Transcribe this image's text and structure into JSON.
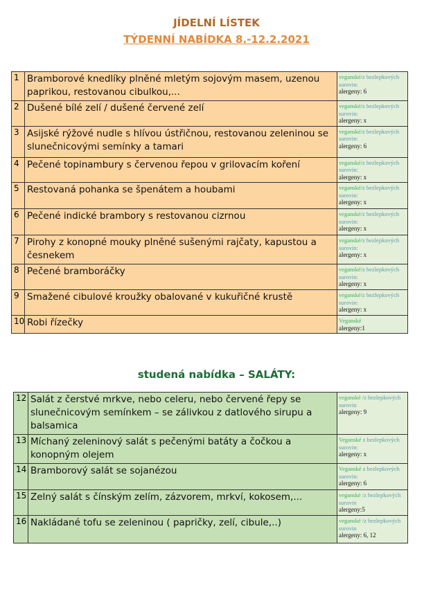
{
  "title": "JÍDELNÍ LÍSTEK",
  "subtitle": "TÝDENNÍ NABÍDKA 8.-12.2.2021",
  "weekly": [
    {
      "num": "1",
      "dish": "Bramborové knedlíky plněné mletým sojovým masem, uzenou paprikou, restovanou cibulkou,...",
      "vegan": "veganské/",
      "gf": "z bezlepkových surovin:",
      "allergens": "alergeny: 6"
    },
    {
      "num": "2",
      "dish": "Dušené bílé zelí / dušené červené zelí",
      "vegan": "veganské/",
      "gf": "z bezlepkových surovin:",
      "allergens": "alergeny: x"
    },
    {
      "num": "3",
      "dish": "Asijské rýžové nudle s hlívou ústřičnou, restovanou zeleninou se slunečnicovými semínky a tamari",
      "vegan": "veganské/",
      "gf": "z bezlepkových surovin:",
      "allergens": "alergeny: 6"
    },
    {
      "num": "4",
      "dish": "Pečené topinambury s červenou řepou v grilovacím koření",
      "vegan": "veganské/",
      "gf": "z bezlepkových surovin:",
      "allergens": "alergeny: x"
    },
    {
      "num": "5",
      "dish": "Restovaná pohanka se špenátem a houbami",
      "vegan": "veganské/",
      "gf": "z bezlepkových surovin:",
      "allergens": "alergeny: x"
    },
    {
      "num": "6",
      "dish": "Pečené indické brambory s restovanou cizrnou",
      "vegan": "veganské/",
      "gf": "z bezlepkových surovin:",
      "allergens": "alergeny: x"
    },
    {
      "num": "7",
      "dish": "Pirohy z konopné mouky plněné sušenými rajčaty, kapustou a česnekem",
      "vegan": "veganské/",
      "gf": "z bezlepkových surovin:",
      "allergens": "alergeny: x"
    },
    {
      "num": "8",
      "dish": "Pečené bramboráčky",
      "vegan": "veganské/",
      "gf": "z bezlepkových surovin:",
      "allergens": "alergeny: x"
    },
    {
      "num": "9",
      "dish": "Smažené cibulové kroužky obalované v kukuřičné krustě",
      "vegan": "veganské/",
      "gf": "z bezlepkových surovin:",
      "allergens": "alergeny: x"
    },
    {
      "num": "10",
      "dish": "Robi řízečky",
      "vegan": "Veganské",
      "gf": "",
      "allergens": "alergeny:1"
    }
  ],
  "salads_heading": "studená nabídka – SALÁTY:",
  "salads": [
    {
      "num": "12",
      "dish": "Salát z čerstvé mrkve, nebo celeru, nebo červené řepy se slunečnicovým semínkem – se zálivkou z datlového sirupu a balsamica",
      "vegan": "veganské /",
      "gf": "z bezlepkových surovin",
      "allergens": "alergeny: 9"
    },
    {
      "num": "13",
      "dish": "Míchaný zeleninový salát s pečenými batáty a čočkou a konopným olejem",
      "vegan": "Veganské ",
      "gf": "z bezlepkových surovin:",
      "allergens": "alergeny: x"
    },
    {
      "num": "14",
      "dish": "Bramborový salát se sojanézou",
      "vegan": "Veganské ",
      "gf": "z bezlepkových surovin:",
      "allergens": "alergeny: 6"
    },
    {
      "num": "15",
      "dish": "Zelný salát s čínským zelím, zázvorem, mrkví, kokosem,...",
      "vegan": "veganské /",
      "gf": "z bezlepkových surovin",
      "allergens": "alergeny:5"
    },
    {
      "num": "16",
      "dish": "Nakládané tofu se zeleninou ( papričky, zelí, cibule,..)",
      "vegan": "veganské /",
      "gf": "z bezlepkových surovin",
      "allergens": "alergeny: 6, 12"
    }
  ]
}
